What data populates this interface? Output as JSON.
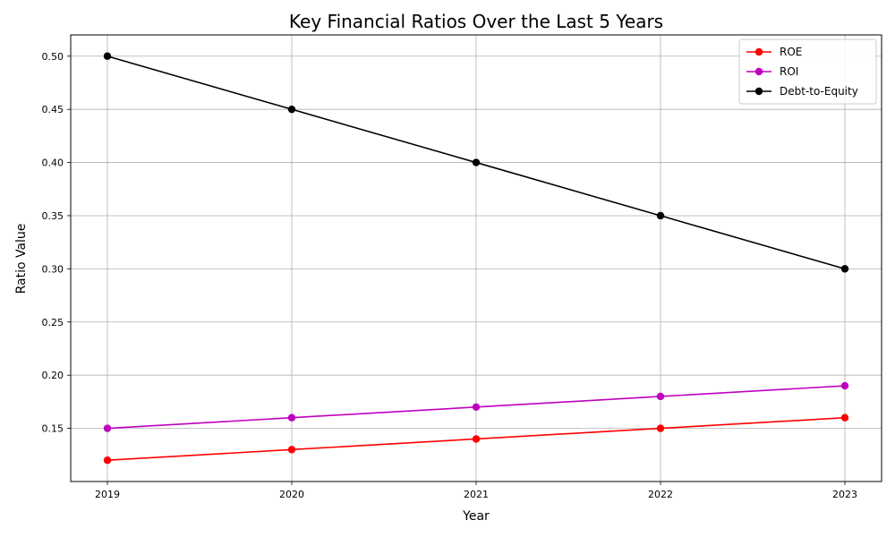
{
  "chart_data": {
    "type": "line",
    "title": "Key Financial Ratios Over the Last 5 Years",
    "xlabel": "Year",
    "ylabel": "Ratio Value",
    "x": [
      "2019",
      "2020",
      "2021",
      "2022",
      "2023"
    ],
    "ylim": [
      0.1,
      0.52
    ],
    "yticks": [
      "0.15",
      "0.20",
      "0.25",
      "0.30",
      "0.35",
      "0.40",
      "0.45",
      "0.50"
    ],
    "grid": true,
    "legend_position": "top-right",
    "series": [
      {
        "name": "ROE",
        "color": "#ff0000",
        "values": [
          0.12,
          0.13,
          0.14,
          0.15,
          0.16
        ]
      },
      {
        "name": "ROI",
        "color": "#bf00bf",
        "values": [
          0.15,
          0.16,
          0.17,
          0.18,
          0.19
        ]
      },
      {
        "name": "Debt-to-Equity",
        "color": "#000000",
        "values": [
          0.5,
          0.45,
          0.4,
          0.35,
          0.3
        ]
      }
    ]
  }
}
